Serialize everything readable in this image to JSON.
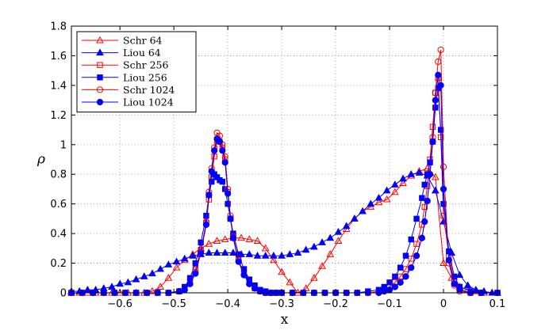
{
  "chart_data": {
    "type": "line",
    "title": "",
    "xlabel": "x",
    "ylabel": "ρ",
    "xlim": [
      -0.69,
      0.1
    ],
    "ylim": [
      0,
      1.8
    ],
    "xticks": [
      -0.6,
      -0.5,
      -0.4,
      -0.3,
      -0.2,
      -0.1,
      0,
      0.1
    ],
    "xtick_labels": [
      "−0.6",
      "−0.5",
      "−0.4",
      "−0.3",
      "−0.2",
      "−0.1",
      "0",
      "0.1"
    ],
    "yticks": [
      0,
      0.2,
      0.4,
      0.6,
      0.8,
      1,
      1.2,
      1.4,
      1.6,
      1.8
    ],
    "ytick_labels": [
      "0",
      "0.2",
      "0.4",
      "0.6",
      "0.8",
      "1",
      "1.2",
      "1.4",
      "1.6",
      "1.8"
    ],
    "grid": true,
    "legend_position": "top-left",
    "series": [
      {
        "name": "Schr 64",
        "color": "#ff0000",
        "marker": "triangle-open",
        "x": [
          -0.69,
          -0.675,
          -0.66,
          -0.645,
          -0.63,
          -0.615,
          -0.6,
          -0.585,
          -0.57,
          -0.555,
          -0.54,
          -0.525,
          -0.51,
          -0.495,
          -0.48,
          -0.465,
          -0.45,
          -0.435,
          -0.42,
          -0.405,
          -0.39,
          -0.375,
          -0.36,
          -0.345,
          -0.33,
          -0.315,
          -0.3,
          -0.285,
          -0.27,
          -0.255,
          -0.24,
          -0.225,
          -0.21,
          -0.195,
          -0.18,
          -0.165,
          -0.15,
          -0.135,
          -0.12,
          -0.105,
          -0.09,
          -0.075,
          -0.06,
          -0.045,
          -0.03,
          -0.015,
          0,
          0.015,
          0.03,
          0.045,
          0.06,
          0.075,
          0.09,
          0.1
        ],
        "y": [
          0,
          0,
          0,
          0,
          0,
          0,
          0,
          0,
          0,
          0,
          0.01,
          0.04,
          0.1,
          0.17,
          0.22,
          0.26,
          0.3,
          0.33,
          0.35,
          0.36,
          0.37,
          0.37,
          0.36,
          0.35,
          0.3,
          0.22,
          0.14,
          0.07,
          0,
          0.03,
          0.1,
          0.18,
          0.26,
          0.35,
          0.43,
          0.5,
          0.55,
          0.58,
          0.61,
          0.63,
          0.68,
          0.74,
          0.79,
          0.82,
          0.84,
          0.78,
          0.2,
          0.1,
          0.04,
          0.02,
          0.01,
          0,
          0,
          0
        ]
      },
      {
        "name": "Liou 64",
        "color": "#0000ff",
        "marker": "triangle-filled",
        "x": [
          -0.69,
          -0.675,
          -0.66,
          -0.645,
          -0.63,
          -0.615,
          -0.6,
          -0.585,
          -0.57,
          -0.555,
          -0.54,
          -0.525,
          -0.51,
          -0.495,
          -0.48,
          -0.465,
          -0.45,
          -0.435,
          -0.42,
          -0.405,
          -0.39,
          -0.375,
          -0.36,
          -0.345,
          -0.33,
          -0.315,
          -0.3,
          -0.285,
          -0.27,
          -0.255,
          -0.24,
          -0.225,
          -0.21,
          -0.195,
          -0.18,
          -0.165,
          -0.15,
          -0.135,
          -0.12,
          -0.105,
          -0.09,
          -0.075,
          -0.06,
          -0.045,
          -0.03,
          -0.015,
          0,
          0.015,
          0.03,
          0.045,
          0.06,
          0.075,
          0.09,
          0.1
        ],
        "y": [
          0.01,
          0.01,
          0.02,
          0.02,
          0.03,
          0.04,
          0.06,
          0.07,
          0.09,
          0.11,
          0.13,
          0.16,
          0.19,
          0.21,
          0.23,
          0.25,
          0.26,
          0.27,
          0.27,
          0.27,
          0.27,
          0.26,
          0.26,
          0.25,
          0.25,
          0.25,
          0.25,
          0.26,
          0.27,
          0.29,
          0.31,
          0.34,
          0.37,
          0.41,
          0.45,
          0.5,
          0.55,
          0.6,
          0.64,
          0.69,
          0.73,
          0.77,
          0.8,
          0.81,
          0.79,
          0.69,
          0.48,
          0.27,
          0.12,
          0.05,
          0.02,
          0.01,
          0,
          0
        ]
      },
      {
        "name": "Schr 256",
        "color": "#ff0000",
        "marker": "square-open",
        "x": [
          -0.69,
          -0.67,
          -0.65,
          -0.63,
          -0.61,
          -0.59,
          -0.57,
          -0.55,
          -0.53,
          -0.51,
          -0.49,
          -0.48,
          -0.47,
          -0.46,
          -0.45,
          -0.44,
          -0.435,
          -0.43,
          -0.425,
          -0.42,
          -0.415,
          -0.41,
          -0.405,
          -0.4,
          -0.395,
          -0.39,
          -0.38,
          -0.37,
          -0.36,
          -0.35,
          -0.34,
          -0.33,
          -0.32,
          -0.31,
          -0.3,
          -0.28,
          -0.26,
          -0.24,
          -0.22,
          -0.2,
          -0.18,
          -0.16,
          -0.14,
          -0.12,
          -0.11,
          -0.1,
          -0.09,
          -0.08,
          -0.07,
          -0.06,
          -0.05,
          -0.04,
          -0.035,
          -0.03,
          -0.025,
          -0.02,
          -0.015,
          -0.01,
          -0.005,
          0,
          0.01,
          0.02,
          0.03,
          0.05,
          0.07,
          0.1
        ],
        "y": [
          0,
          0,
          0,
          0,
          0,
          0,
          0,
          0,
          0,
          0,
          0.01,
          0.03,
          0.08,
          0.16,
          0.29,
          0.47,
          0.63,
          0.78,
          0.92,
          1.03,
          1.02,
          0.98,
          0.9,
          0.68,
          0.5,
          0.38,
          0.22,
          0.13,
          0.07,
          0.03,
          0.01,
          0,
          0,
          0,
          0,
          0,
          0,
          0,
          0,
          0,
          0,
          0,
          0,
          0.01,
          0.02,
          0.04,
          0.07,
          0.11,
          0.16,
          0.23,
          0.33,
          0.46,
          0.58,
          0.72,
          0.9,
          1.12,
          1.35,
          1.45,
          1.05,
          0.52,
          0.25,
          0.08,
          0.02,
          0,
          0,
          0
        ]
      },
      {
        "name": "Liou 256",
        "color": "#0000ff",
        "marker": "square-filled",
        "x": [
          -0.69,
          -0.67,
          -0.65,
          -0.63,
          -0.61,
          -0.59,
          -0.57,
          -0.55,
          -0.53,
          -0.51,
          -0.49,
          -0.48,
          -0.47,
          -0.46,
          -0.45,
          -0.44,
          -0.435,
          -0.43,
          -0.425,
          -0.42,
          -0.415,
          -0.41,
          -0.405,
          -0.4,
          -0.395,
          -0.39,
          -0.38,
          -0.37,
          -0.36,
          -0.35,
          -0.34,
          -0.33,
          -0.32,
          -0.31,
          -0.3,
          -0.28,
          -0.26,
          -0.24,
          -0.22,
          -0.2,
          -0.18,
          -0.16,
          -0.14,
          -0.12,
          -0.11,
          -0.1,
          -0.09,
          -0.08,
          -0.07,
          -0.06,
          -0.05,
          -0.04,
          -0.035,
          -0.03,
          -0.025,
          -0.02,
          -0.015,
          -0.01,
          -0.005,
          0,
          0.01,
          0.02,
          0.03,
          0.05,
          0.07,
          0.1
        ],
        "y": [
          0,
          0,
          0,
          0,
          0,
          0,
          0,
          0,
          0,
          0,
          0.01,
          0.04,
          0.1,
          0.2,
          0.34,
          0.52,
          0.66,
          0.75,
          0.8,
          0.78,
          0.76,
          0.75,
          0.7,
          0.6,
          0.5,
          0.4,
          0.26,
          0.16,
          0.09,
          0.05,
          0.02,
          0.01,
          0,
          0,
          0,
          0,
          0,
          0,
          0,
          0,
          0,
          0,
          0.01,
          0.02,
          0.04,
          0.07,
          0.11,
          0.17,
          0.25,
          0.36,
          0.5,
          0.64,
          0.73,
          0.8,
          0.88,
          1.02,
          1.25,
          1.38,
          1.1,
          0.6,
          0.28,
          0.11,
          0.04,
          0.01,
          0,
          0
        ]
      },
      {
        "name": "Schr 1024",
        "color": "#ff0000",
        "marker": "circle-open",
        "x": [
          -0.69,
          -0.67,
          -0.65,
          -0.63,
          -0.61,
          -0.59,
          -0.57,
          -0.55,
          -0.53,
          -0.51,
          -0.49,
          -0.48,
          -0.47,
          -0.46,
          -0.45,
          -0.44,
          -0.435,
          -0.43,
          -0.425,
          -0.42,
          -0.415,
          -0.41,
          -0.405,
          -0.4,
          -0.395,
          -0.39,
          -0.38,
          -0.37,
          -0.36,
          -0.35,
          -0.34,
          -0.33,
          -0.32,
          -0.31,
          -0.3,
          -0.28,
          -0.26,
          -0.24,
          -0.22,
          -0.2,
          -0.18,
          -0.16,
          -0.14,
          -0.12,
          -0.11,
          -0.1,
          -0.09,
          -0.08,
          -0.07,
          -0.06,
          -0.05,
          -0.04,
          -0.035,
          -0.03,
          -0.025,
          -0.02,
          -0.015,
          -0.01,
          -0.005,
          0,
          0.01,
          0.02,
          0.03,
          0.05,
          0.07,
          0.1
        ],
        "y": [
          0,
          0,
          0,
          0,
          0,
          0,
          0,
          0,
          0,
          0,
          0.01,
          0.02,
          0.06,
          0.14,
          0.28,
          0.48,
          0.68,
          0.84,
          0.98,
          1.08,
          1.06,
          1,
          0.92,
          0.7,
          0.52,
          0.38,
          0.22,
          0.12,
          0.06,
          0.03,
          0.01,
          0,
          0,
          0,
          0,
          0,
          0,
          0,
          0,
          0,
          0,
          0,
          0,
          0,
          0.01,
          0.02,
          0.04,
          0.07,
          0.11,
          0.17,
          0.25,
          0.37,
          0.48,
          0.62,
          0.8,
          1.05,
          1.35,
          1.56,
          1.64,
          0.85,
          0.2,
          0.05,
          0.01,
          0,
          0,
          0
        ]
      },
      {
        "name": "Liou 1024",
        "color": "#0000ff",
        "marker": "circle-filled",
        "x": [
          -0.69,
          -0.67,
          -0.65,
          -0.63,
          -0.61,
          -0.59,
          -0.57,
          -0.55,
          -0.53,
          -0.51,
          -0.49,
          -0.48,
          -0.47,
          -0.46,
          -0.45,
          -0.44,
          -0.435,
          -0.43,
          -0.425,
          -0.42,
          -0.415,
          -0.41,
          -0.405,
          -0.4,
          -0.395,
          -0.39,
          -0.38,
          -0.37,
          -0.36,
          -0.35,
          -0.34,
          -0.33,
          -0.32,
          -0.31,
          -0.3,
          -0.28,
          -0.26,
          -0.24,
          -0.22,
          -0.2,
          -0.18,
          -0.16,
          -0.14,
          -0.12,
          -0.11,
          -0.1,
          -0.09,
          -0.08,
          -0.07,
          -0.06,
          -0.05,
          -0.04,
          -0.035,
          -0.03,
          -0.025,
          -0.02,
          -0.015,
          -0.01,
          -0.005,
          0,
          0.01,
          0.02,
          0.03,
          0.05,
          0.07,
          0.1
        ],
        "y": [
          0,
          0,
          0,
          0,
          0,
          0,
          0,
          0,
          0,
          0,
          0.01,
          0.02,
          0.06,
          0.13,
          0.27,
          0.46,
          0.66,
          0.82,
          0.96,
          1.04,
          1.02,
          0.96,
          0.88,
          0.67,
          0.5,
          0.37,
          0.21,
          0.12,
          0.06,
          0.03,
          0.01,
          0,
          0,
          0,
          0,
          0,
          0,
          0,
          0,
          0,
          0,
          0,
          0,
          0,
          0.01,
          0.02,
          0.04,
          0.07,
          0.11,
          0.17,
          0.25,
          0.37,
          0.48,
          0.62,
          0.8,
          1.02,
          1.3,
          1.47,
          1.4,
          0.7,
          0.22,
          0.06,
          0.02,
          0,
          0,
          0
        ]
      }
    ]
  }
}
